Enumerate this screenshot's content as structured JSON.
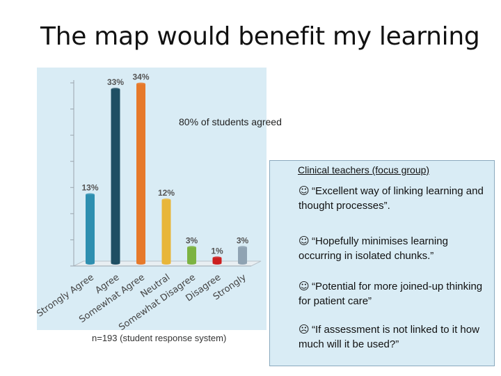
{
  "slide": {
    "title": "The map would benefit my learning",
    "agree_note": "80% of students agreed",
    "footnote": "n=193 (student response system)"
  },
  "chart_data": {
    "type": "bar",
    "categories": [
      "Strongly Agree",
      "Agree",
      "Somewhat Agree",
      "Neutral",
      "Somewhat Disagree",
      "Disagree",
      "Strongly"
    ],
    "values": [
      13,
      33,
      34,
      12,
      3,
      1,
      3
    ],
    "data_labels": [
      "13%",
      "33%",
      "34%",
      "12%",
      "3%",
      "1%",
      "3%"
    ],
    "colors": [
      "#2e8fb0",
      "#1f4f63",
      "#e6792a",
      "#e8b63a",
      "#7cb342",
      "#cc1f1f",
      "#8fa3b3"
    ],
    "ylim": [
      0,
      35
    ],
    "grid": false
  },
  "quote_box": {
    "heading": "Clinical teachers (focus group)",
    "quotes": [
      {
        "icon": "smile-icon",
        "glyph": "☺",
        "text": "“Excellent way of linking learning and thought processes”."
      },
      {
        "icon": "smile-icon",
        "glyph": "☺",
        "text": "“Hopefully minimises learning occurring in isolated chunks.”"
      },
      {
        "icon": "smile-icon",
        "glyph": "☺",
        "text": "“Potential for more joined-up thinking for patient care”"
      },
      {
        "icon": "frown-icon",
        "glyph": "☹",
        "text": "“If assessment is not linked to it how much will it be used?”"
      }
    ]
  }
}
